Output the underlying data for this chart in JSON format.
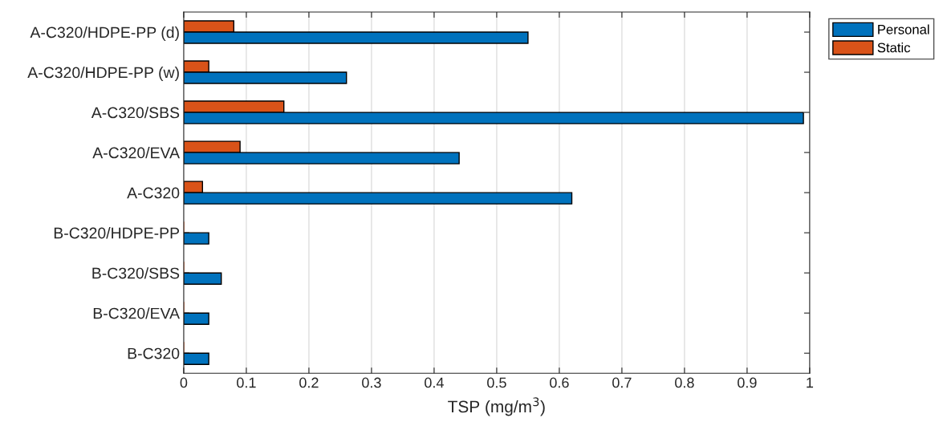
{
  "chart_data": {
    "type": "bar",
    "orientation": "horizontal",
    "xlabel": "TSP (mg/m$^{3}$)",
    "categories": [
      "A-C320/HDPE-PP (d)",
      "A-C320/HDPE-PP (w)",
      "A-C320/SBS",
      "A-C320/EVA",
      "A-C320",
      "B-C320/HDPE-PP",
      "B-C320/SBS",
      "B-C320/EVA",
      "B-C320"
    ],
    "series": [
      {
        "name": "Static",
        "color": "#d95319",
        "values": [
          0.08,
          0.04,
          0.16,
          0.09,
          0.03,
          0,
          0,
          0,
          0
        ]
      },
      {
        "name": "Personal",
        "color": "#0072bd",
        "values": [
          0.55,
          0.26,
          0.99,
          0.44,
          0.62,
          0.04,
          0.06,
          0.04,
          0.04
        ]
      }
    ],
    "xlim": [
      0,
      1
    ],
    "xticks": [
      0,
      0.1,
      0.2,
      0.3,
      0.4,
      0.5,
      0.6,
      0.7,
      0.8,
      0.9,
      1
    ],
    "grid": "x",
    "legend": "top right"
  }
}
